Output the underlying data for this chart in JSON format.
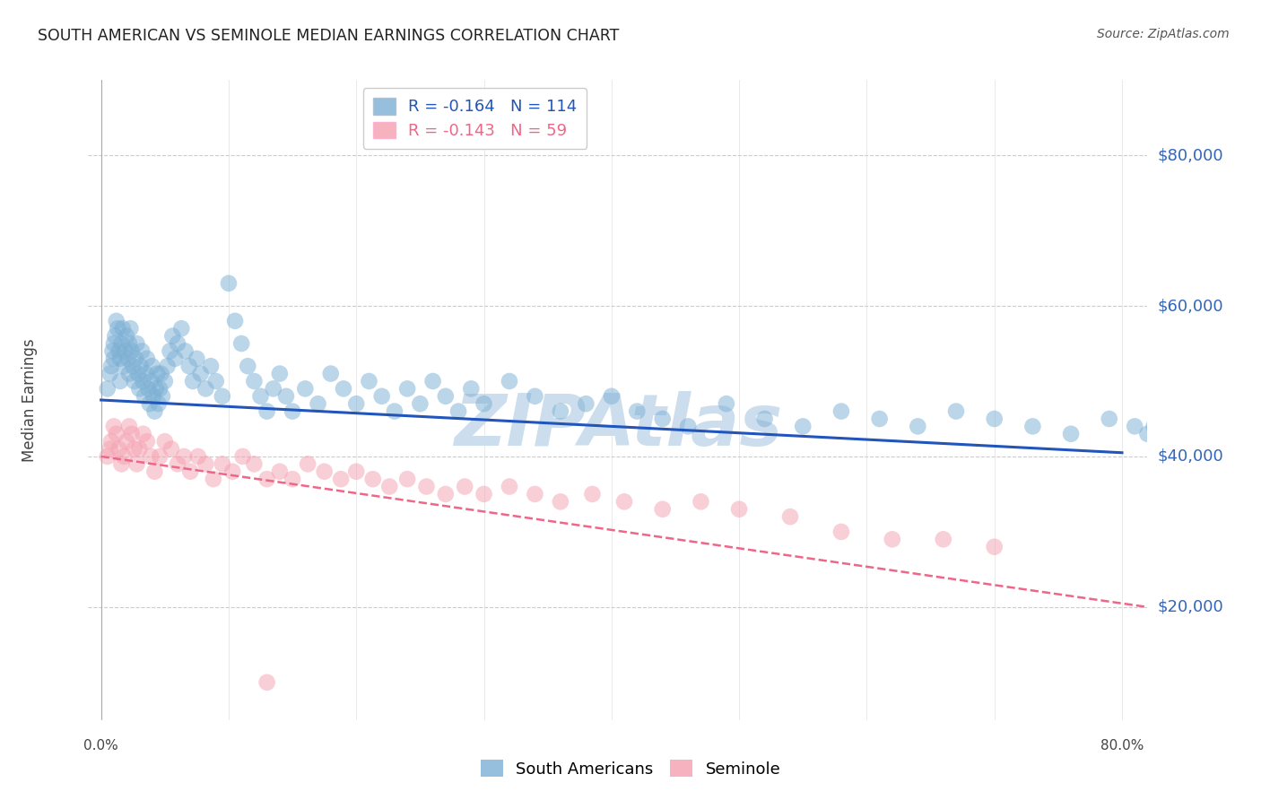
{
  "title": "SOUTH AMERICAN VS SEMINOLE MEDIAN EARNINGS CORRELATION CHART",
  "source": "Source: ZipAtlas.com",
  "ylabel": "Median Earnings",
  "yticks": [
    20000,
    40000,
    60000,
    80000
  ],
  "ytick_labels": [
    "$20,000",
    "$40,000",
    "$60,000",
    "$80,000"
  ],
  "xlim": [
    -0.01,
    0.82
  ],
  "ylim": [
    5000,
    90000
  ],
  "south_american_R": -0.164,
  "south_american_N": 114,
  "seminole_R": -0.143,
  "seminole_N": 59,
  "blue_color": "#7BAFD4",
  "pink_color": "#F4A0B0",
  "trendline_blue": "#2255BB",
  "trendline_pink": "#EE6688",
  "watermark": "ZIPAtlas",
  "watermark_color": "#CCDDED",
  "background_color": "#FFFFFF",
  "grid_color": "#CCCCCC",
  "axis_label_color": "#3366BB",
  "title_color": "#222222",
  "sa_x": [
    0.005,
    0.007,
    0.008,
    0.009,
    0.01,
    0.01,
    0.011,
    0.012,
    0.013,
    0.014,
    0.015,
    0.015,
    0.016,
    0.017,
    0.018,
    0.019,
    0.02,
    0.021,
    0.022,
    0.022,
    0.023,
    0.024,
    0.025,
    0.026,
    0.027,
    0.028,
    0.029,
    0.03,
    0.031,
    0.032,
    0.033,
    0.034,
    0.035,
    0.036,
    0.037,
    0.038,
    0.039,
    0.04,
    0.041,
    0.042,
    0.043,
    0.044,
    0.045,
    0.046,
    0.047,
    0.048,
    0.05,
    0.052,
    0.054,
    0.056,
    0.058,
    0.06,
    0.063,
    0.066,
    0.069,
    0.072,
    0.075,
    0.078,
    0.082,
    0.086,
    0.09,
    0.095,
    0.1,
    0.105,
    0.11,
    0.115,
    0.12,
    0.125,
    0.13,
    0.135,
    0.14,
    0.145,
    0.15,
    0.16,
    0.17,
    0.18,
    0.19,
    0.2,
    0.21,
    0.22,
    0.23,
    0.24,
    0.25,
    0.26,
    0.27,
    0.28,
    0.29,
    0.3,
    0.32,
    0.34,
    0.36,
    0.38,
    0.4,
    0.42,
    0.44,
    0.46,
    0.49,
    0.52,
    0.55,
    0.58,
    0.61,
    0.64,
    0.67,
    0.7,
    0.73,
    0.76,
    0.79,
    0.81,
    0.82,
    0.825,
    0.828,
    0.83,
    0.832,
    0.835
  ],
  "sa_y": [
    49000,
    51000,
    52000,
    54000,
    53000,
    55000,
    56000,
    58000,
    57000,
    54000,
    50000,
    53000,
    55000,
    57000,
    52000,
    54000,
    56000,
    53000,
    51000,
    55000,
    57000,
    54000,
    52000,
    50000,
    53000,
    55000,
    51000,
    49000,
    52000,
    54000,
    50000,
    48000,
    51000,
    53000,
    49000,
    47000,
    50000,
    52000,
    48000,
    46000,
    49000,
    51000,
    47000,
    49000,
    51000,
    48000,
    50000,
    52000,
    54000,
    56000,
    53000,
    55000,
    57000,
    54000,
    52000,
    50000,
    53000,
    51000,
    49000,
    52000,
    50000,
    48000,
    63000,
    58000,
    55000,
    52000,
    50000,
    48000,
    46000,
    49000,
    51000,
    48000,
    46000,
    49000,
    47000,
    51000,
    49000,
    47000,
    50000,
    48000,
    46000,
    49000,
    47000,
    50000,
    48000,
    46000,
    49000,
    47000,
    50000,
    48000,
    46000,
    47000,
    48000,
    46000,
    45000,
    44000,
    47000,
    45000,
    44000,
    46000,
    45000,
    44000,
    46000,
    45000,
    44000,
    43000,
    45000,
    44000,
    43000,
    44000,
    43000,
    44000,
    43000,
    42000
  ],
  "sem_x": [
    0.005,
    0.007,
    0.008,
    0.01,
    0.012,
    0.014,
    0.016,
    0.018,
    0.02,
    0.022,
    0.024,
    0.026,
    0.028,
    0.03,
    0.033,
    0.036,
    0.039,
    0.042,
    0.046,
    0.05,
    0.055,
    0.06,
    0.065,
    0.07,
    0.076,
    0.082,
    0.088,
    0.095,
    0.103,
    0.111,
    0.12,
    0.13,
    0.14,
    0.15,
    0.162,
    0.175,
    0.188,
    0.2,
    0.213,
    0.226,
    0.24,
    0.255,
    0.27,
    0.285,
    0.3,
    0.32,
    0.34,
    0.36,
    0.385,
    0.41,
    0.44,
    0.47,
    0.5,
    0.54,
    0.58,
    0.62,
    0.66,
    0.7,
    0.13
  ],
  "sem_y": [
    40000,
    41000,
    42000,
    44000,
    43000,
    41000,
    39000,
    40000,
    42000,
    44000,
    43000,
    41000,
    39000,
    41000,
    43000,
    42000,
    40000,
    38000,
    40000,
    42000,
    41000,
    39000,
    40000,
    38000,
    40000,
    39000,
    37000,
    39000,
    38000,
    40000,
    39000,
    37000,
    38000,
    37000,
    39000,
    38000,
    37000,
    38000,
    37000,
    36000,
    37000,
    36000,
    35000,
    36000,
    35000,
    36000,
    35000,
    34000,
    35000,
    34000,
    33000,
    34000,
    33000,
    32000,
    30000,
    29000,
    29000,
    28000,
    10000
  ],
  "trendline_sa_x0": 0.0,
  "trendline_sa_y0": 47500,
  "trendline_sa_x1": 0.8,
  "trendline_sa_y1": 40500,
  "trendline_sem_x0": 0.0,
  "trendline_sem_y0": 40000,
  "trendline_sem_x1": 0.82,
  "trendline_sem_y1": 20000
}
